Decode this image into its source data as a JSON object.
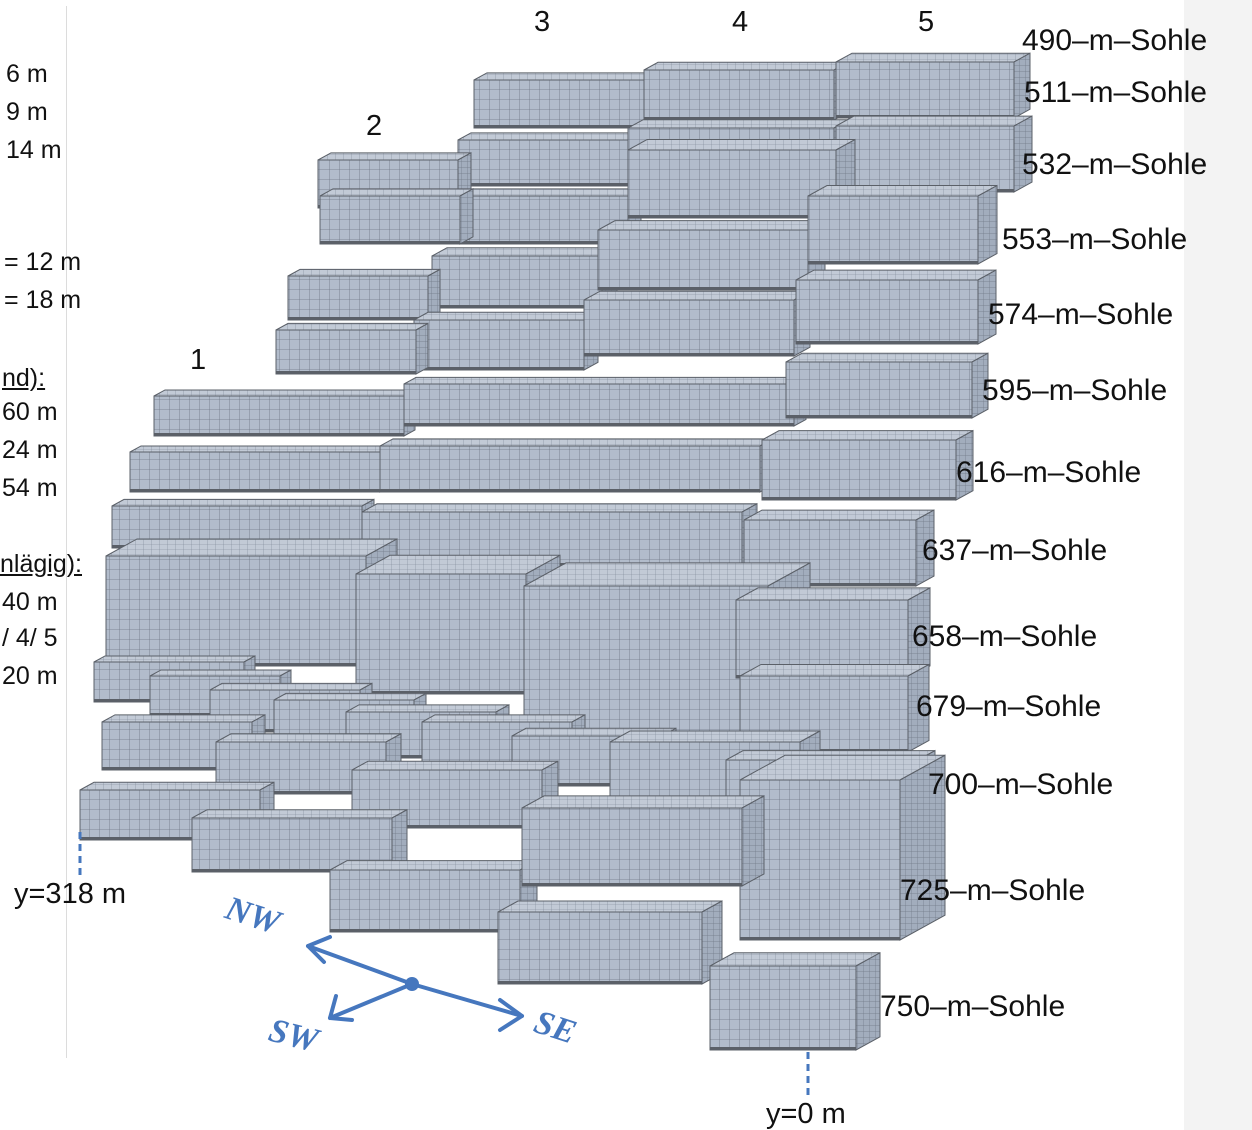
{
  "left_labels": [
    "6 m",
    "9 m",
    "14 m",
    "= 12 m",
    "= 18 m",
    "nd):",
    "60 m",
    "24 m",
    "54 m",
    "nlägig):",
    "40 m",
    "/ 4/ 5",
    "20 m"
  ],
  "column_labels": [
    "1",
    "2",
    "3",
    "4",
    "5"
  ],
  "level_labels": [
    "490–m–Sohle",
    "511–m–Sohle",
    "532–m–Sohle",
    "553–m–Sohle",
    "574–m–Sohle",
    "595–m–Sohle",
    "616–m–Sohle",
    "637–m–Sohle",
    "658–m–Sohle",
    "679–m–Sohle",
    "700–m–Sohle",
    "725–m–Sohle",
    "750–m–Sohle"
  ],
  "y_markers": [
    "y=318 m",
    "y=0 m"
  ],
  "compass": {
    "nw": "NW",
    "sw": "SW",
    "se": "SE"
  },
  "colors": {
    "block_front": "#b2bccb",
    "block_top": "#c7d0dc",
    "block_side": "#97a3b3",
    "mesh": "#6f7886",
    "gap": "#5b6068",
    "accent": "#4677be"
  }
}
